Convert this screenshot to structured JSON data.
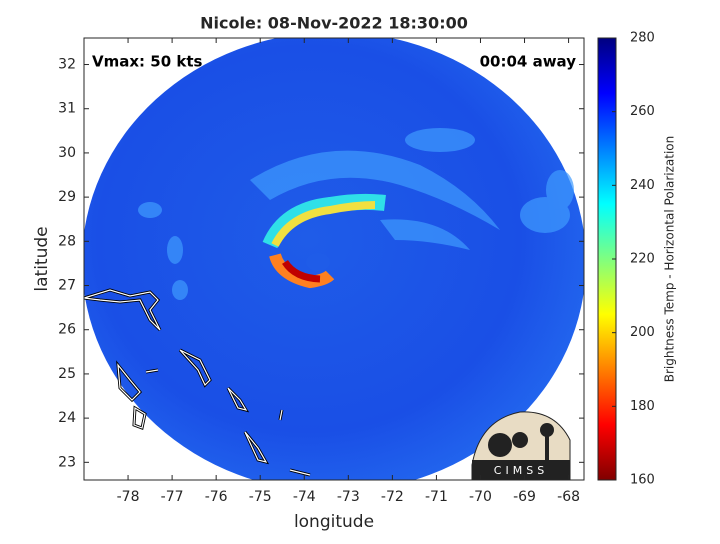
{
  "chart_data": {
    "type": "map",
    "title": "Nicole: 08-Nov-2022 18:30:00",
    "annotations": [
      "Vmax: 50 kts",
      "00:04 away"
    ],
    "xlabel": "longitude",
    "ylabel": "latitude",
    "xlim": [
      -79,
      -67.65
    ],
    "ylim": [
      22.6,
      32.6
    ],
    "xticks": [
      -78,
      -77,
      -76,
      -75,
      -74,
      -73,
      -72,
      -71,
      -70,
      -69,
      -68
    ],
    "yticks": [
      23,
      24,
      25,
      26,
      27,
      28,
      29,
      30,
      31,
      32
    ],
    "colorbar": {
      "label": "Brightness Temp - Horizontal Polarization",
      "clim": [
        160,
        280
      ],
      "ticks": [
        160,
        180,
        200,
        220,
        240,
        260,
        280
      ]
    },
    "logo": "CIMSS"
  }
}
